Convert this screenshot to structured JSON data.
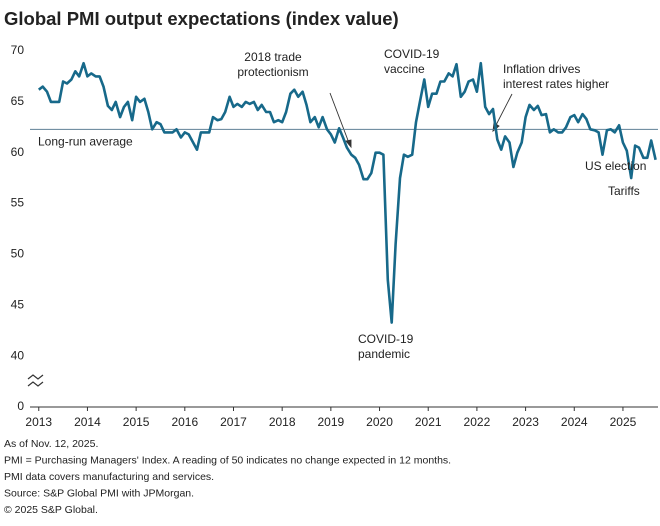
{
  "chart_data": {
    "type": "line",
    "title": "Global PMI output expectations (index value)",
    "color": "#17698a",
    "axis_break": true,
    "xlim": [
      2012.82,
      2025.72
    ],
    "xticks": [
      2013,
      2014,
      2015,
      2016,
      2017,
      2018,
      2019,
      2020,
      2021,
      2022,
      2023,
      2024,
      2025
    ],
    "ylim": [
      0,
      70
    ],
    "yticks": [
      0,
      40,
      45,
      50,
      55,
      60,
      65,
      70
    ],
    "reference_lines": [
      {
        "label": "Long-run average",
        "value": 62.3,
        "color": "#5f8196"
      }
    ],
    "annotations": [
      {
        "text": [
          "2018 trade",
          "protectionism"
        ]
      },
      {
        "text": [
          "COVID-19",
          "vaccine"
        ]
      },
      {
        "text": [
          "Inflation drives",
          "interest rates higher"
        ]
      },
      {
        "text": [
          "COVID-19",
          "pandemic"
        ]
      },
      {
        "text": [
          "US election"
        ]
      },
      {
        "text": [
          "Tariffs"
        ]
      }
    ],
    "x": [
      2013,
      2013.08,
      2013.17,
      2013.25,
      2013.33,
      2013.42,
      2013.5,
      2013.58,
      2013.67,
      2013.75,
      2013.83,
      2013.92,
      2014,
      2014.08,
      2014.17,
      2014.25,
      2014.33,
      2014.42,
      2014.5,
      2014.58,
      2014.67,
      2014.75,
      2014.83,
      2014.92,
      2015,
      2015.08,
      2015.17,
      2015.25,
      2015.33,
      2015.42,
      2015.5,
      2015.58,
      2015.67,
      2015.75,
      2015.83,
      2015.92,
      2016,
      2016.08,
      2016.17,
      2016.25,
      2016.33,
      2016.42,
      2016.5,
      2016.58,
      2016.67,
      2016.75,
      2016.83,
      2016.92,
      2017,
      2017.08,
      2017.17,
      2017.25,
      2017.33,
      2017.42,
      2017.5,
      2017.58,
      2017.67,
      2017.75,
      2017.83,
      2017.92,
      2018,
      2018.08,
      2018.17,
      2018.25,
      2018.33,
      2018.42,
      2018.5,
      2018.58,
      2018.67,
      2018.75,
      2018.83,
      2018.92,
      2019,
      2019.08,
      2019.17,
      2019.25,
      2019.33,
      2019.42,
      2019.5,
      2019.58,
      2019.67,
      2019.75,
      2019.83,
      2019.92,
      2020,
      2020.08,
      2020.17,
      2020.25,
      2020.33,
      2020.42,
      2020.5,
      2020.58,
      2020.67,
      2020.75,
      2020.83,
      2020.92,
      2021,
      2021.08,
      2021.17,
      2021.25,
      2021.33,
      2021.42,
      2021.5,
      2021.58,
      2021.67,
      2021.75,
      2021.83,
      2021.92,
      2022,
      2022.08,
      2022.17,
      2022.25,
      2022.33,
      2022.42,
      2022.5,
      2022.58,
      2022.67,
      2022.75,
      2022.83,
      2022.92,
      2023,
      2023.08,
      2023.17,
      2023.25,
      2023.33,
      2023.42,
      2023.5,
      2023.58,
      2023.67,
      2023.75,
      2023.83,
      2023.92,
      2024,
      2024.08,
      2024.17,
      2024.25,
      2024.33,
      2024.42,
      2024.5,
      2024.58,
      2024.67,
      2024.75,
      2024.83,
      2024.92,
      2025,
      2025.08,
      2025.17,
      2025.25,
      2025.33,
      2025.42,
      2025.5,
      2025.58,
      2025.67
    ],
    "values": [
      66.2,
      66.5,
      66,
      65,
      65,
      65,
      67,
      66.8,
      67.2,
      68,
      67.5,
      68.8,
      67.5,
      67.8,
      67.5,
      67.5,
      66.5,
      64.6,
      64.2,
      65,
      63.5,
      64.5,
      65,
      63.2,
      65.5,
      65,
      65.3,
      64,
      62.3,
      63,
      62.8,
      62,
      62,
      62,
      62.3,
      61.5,
      62,
      61.8,
      61,
      60.3,
      62,
      62,
      62,
      63.5,
      63.2,
      63.3,
      64,
      65.5,
      64.5,
      64.8,
      64.5,
      65,
      64.8,
      65,
      64.2,
      64.7,
      64,
      64,
      63,
      63.2,
      63,
      64,
      65.8,
      66.2,
      65.5,
      66,
      64.7,
      63,
      63.5,
      62.5,
      63.5,
      62.3,
      61.8,
      61,
      62.4,
      61.5,
      60.5,
      59.8,
      59.5,
      58.8,
      57.4,
      57.4,
      58,
      60,
      60,
      59.8,
      47.5,
      43.3,
      51,
      57.5,
      59.8,
      59.6,
      59.8,
      63,
      65,
      67.2,
      64.5,
      65.8,
      65.8,
      67,
      67,
      67.8,
      67.5,
      68.7,
      65.5,
      66,
      67,
      67.2,
      66,
      68.8,
      64.5,
      63.8,
      64.3,
      61.3,
      60.3,
      61.6,
      61,
      58.6,
      60,
      61,
      63.5,
      64.7,
      64.2,
      64.6,
      63.7,
      63.8,
      62,
      62.3,
      62,
      62,
      62.5,
      63.5,
      63.7,
      63,
      63.8,
      63.3,
      62.3,
      62.2,
      62,
      59.8,
      62.2,
      62.3,
      62,
      62.7,
      61,
      60.2,
      57.5,
      60.7,
      60.5,
      59.5,
      59.5,
      61.2,
      59.3
    ]
  },
  "footnotes": [
    "As of Nov. 12, 2025.",
    "PMI = Purchasing Managers' Index. A reading of 50 indicates no change expected in 12 months.",
    "PMI data covers manufacturing and services.",
    "Source: S&P Global PMI with JPMorgan.",
    "© 2025 S&P Global."
  ]
}
